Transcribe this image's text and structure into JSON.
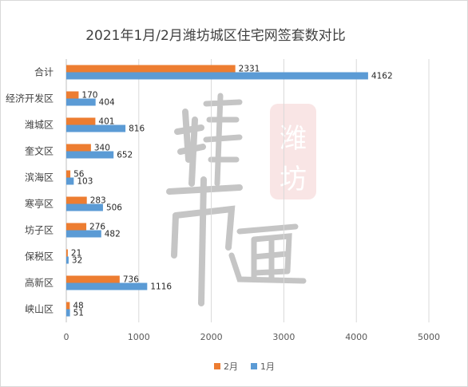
{
  "chart_data": {
    "type": "bar",
    "orientation": "horizontal",
    "title": "2021年1月/2月潍坊城区住宅网签套数对比",
    "categories": [
      "合计",
      "经济开发区",
      "潍城区",
      "奎文区",
      "滨海区",
      "寒亭区",
      "坊子区",
      "保税区",
      "高新区",
      "峡山区"
    ],
    "series": [
      {
        "name": "2月",
        "color": "#ED7D31",
        "values": [
          2331,
          170,
          401,
          340,
          56,
          283,
          276,
          21,
          736,
          48
        ]
      },
      {
        "name": "1月",
        "color": "#5B9BD5",
        "values": [
          4162,
          404,
          816,
          652,
          103,
          506,
          482,
          32,
          1116,
          51
        ]
      }
    ],
    "xlim": [
      0,
      5000
    ],
    "xticks": [
      0,
      1000,
      2000,
      3000,
      4000,
      5000
    ],
    "grid": true,
    "legend": "bottom",
    "xlabel": "",
    "ylabel": ""
  },
  "watermark": {
    "text_main": "楼市通",
    "text_seal": "潍坊"
  }
}
